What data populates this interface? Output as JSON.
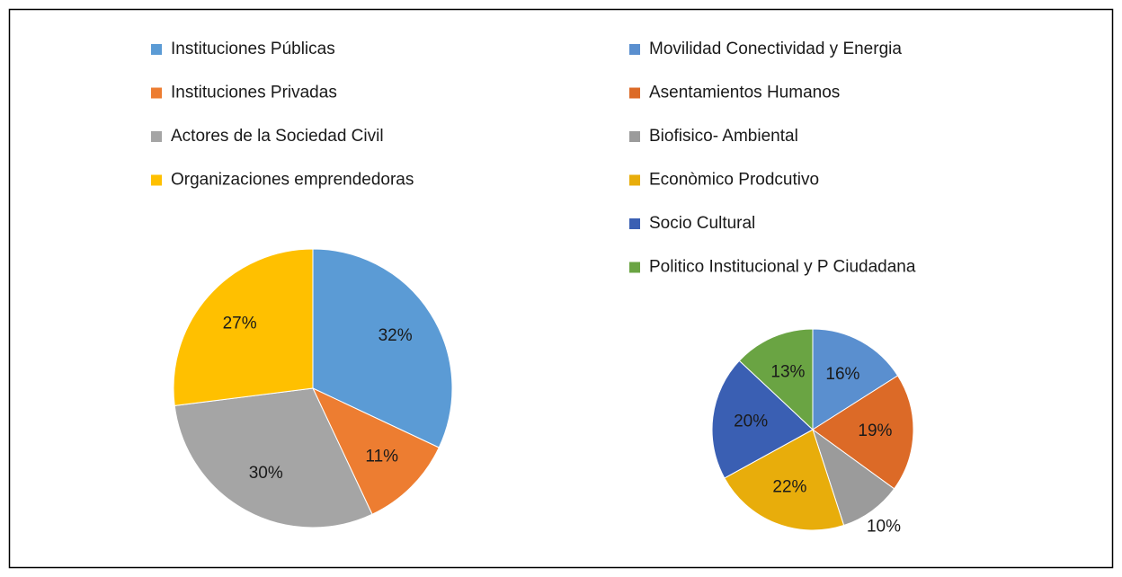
{
  "chart_data": [
    {
      "type": "pie",
      "categories": [
        "Instituciones Públicas",
        "Instituciones Privadas",
        "Actores de la Sociedad Civil",
        "Organizaciones  emprendedoras"
      ],
      "values": [
        32,
        11,
        30,
        27
      ],
      "value_labels": [
        "32%",
        "11%",
        "30%",
        "27%"
      ],
      "colors": [
        "#5b9bd5",
        "#ed7d31",
        "#a5a5a5",
        "#ffc000"
      ]
    },
    {
      "type": "pie",
      "categories": [
        "Movilidad Conectividad y Energia",
        "Asentamientos Humanos",
        "Biofisico- Ambiental",
        "Econòmico Prodcutivo",
        "Socio Cultural",
        "Politico Institucional y P Ciudadana"
      ],
      "values": [
        16,
        19,
        10,
        22,
        20,
        13
      ],
      "value_labels": [
        "16%",
        "19%",
        "10%",
        "22%",
        "20%",
        "13%"
      ],
      "colors": [
        "#5a8fcf",
        "#dc6a27",
        "#9b9b9b",
        "#e8ad0b",
        "#3a5fb3",
        "#6aa443"
      ]
    }
  ]
}
